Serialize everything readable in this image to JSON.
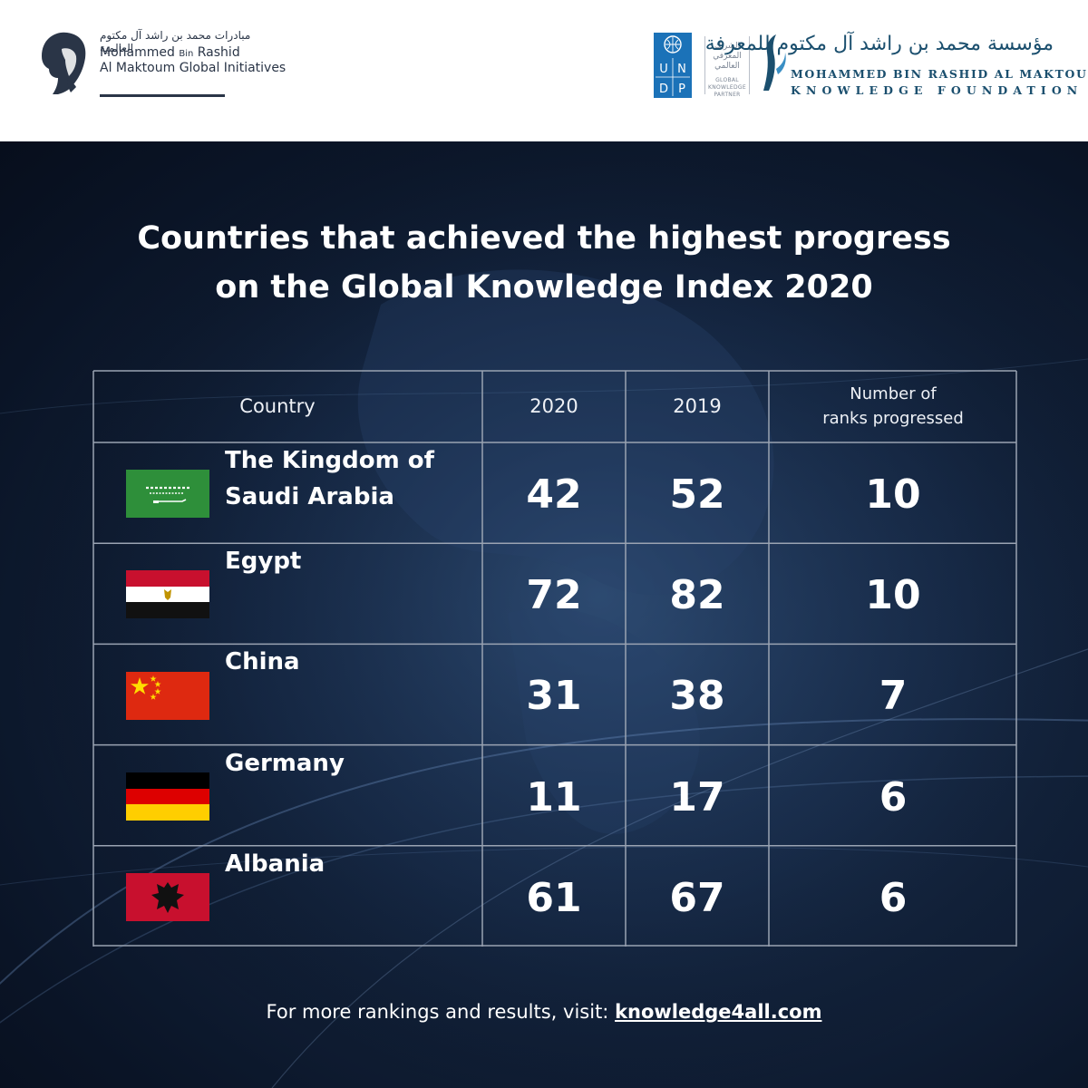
{
  "header": {
    "left_logo": {
      "arabic": "مبادرات محمد بن راشد آل مكتوم العالمية",
      "line1": "Mohammed Bin Rashid",
      "line2": "Al Maktoum Global Initiatives",
      "line1a": "Mohammed",
      "line1b": "Bin",
      "line1c": "Rashid"
    },
    "undp": {
      "letters": [
        "U",
        "N",
        "D",
        "P"
      ]
    },
    "partner": {
      "arabic_line1": "الشريك",
      "arabic_line2": "المعرفي",
      "arabic_line3": "العالمي",
      "english_line1": "GLOBAL",
      "english_line2": "KNOWLEDGE",
      "english_line3": "PARTNER"
    },
    "foundation": {
      "arabic": "مؤسسة محمد بن راشد آل مكتوم للمعرفة",
      "line1": "MOHAMMED BIN RASHID AL MAKTOUM",
      "line2": "KNOWLEDGE FOUNDATION"
    }
  },
  "title": {
    "line1": "Countries that achieved the highest progress",
    "line2": "on the Global Knowledge Index 2020"
  },
  "chart_data": {
    "type": "table",
    "title": "Countries that achieved the highest progress on the Global Knowledge Index 2020",
    "columns": [
      "Country",
      "2020",
      "2019",
      "Number of ranks progressed"
    ],
    "column_header_lines": {
      "country": "Country",
      "y2020": "2020",
      "y2019": "2019",
      "progress_line1": "Number of",
      "progress_line2": "ranks progressed"
    },
    "rows": [
      {
        "country_line1": "The Kingdom of",
        "country_line2": "Saudi Arabia",
        "flag": "saudi-arabia-flag",
        "rank_2020": "42",
        "rank_2019": "52",
        "progressed": "10"
      },
      {
        "country_line1": "Egypt",
        "country_line2": "",
        "flag": "egypt-flag",
        "rank_2020": "72",
        "rank_2019": "82",
        "progressed": "10"
      },
      {
        "country_line1": "China",
        "country_line2": "",
        "flag": "china-flag",
        "rank_2020": "31",
        "rank_2019": "38",
        "progressed": "7"
      },
      {
        "country_line1": "Germany",
        "country_line2": "",
        "flag": "germany-flag",
        "rank_2020": "11",
        "rank_2019": "17",
        "progressed": "6"
      },
      {
        "country_line1": "Albania",
        "country_line2": "",
        "flag": "albania-flag",
        "rank_2020": "61",
        "rank_2019": "67",
        "progressed": "6"
      }
    ]
  },
  "footer": {
    "text": "For more rankings and results, visit: ",
    "link": "knowledge4all.com"
  },
  "colors": {
    "background": "#0b1424",
    "grid": "#9aa3b2",
    "text": "#ffffff",
    "brand_blue": "#1b4f6e",
    "undp_blue": "#1b72b8"
  }
}
